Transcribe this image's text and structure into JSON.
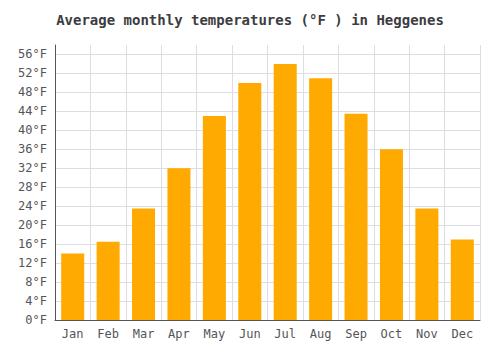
{
  "chart_data": {
    "type": "bar",
    "title": "Average monthly temperatures (°F ) in Heggenes",
    "categories": [
      "Jan",
      "Feb",
      "Mar",
      "Apr",
      "May",
      "Jun",
      "Jul",
      "Aug",
      "Sep",
      "Oct",
      "Nov",
      "Dec"
    ],
    "values": [
      14,
      16.5,
      23.5,
      32,
      43,
      50,
      54,
      51,
      43.5,
      36,
      23.5,
      17
    ],
    "color": "#FFAA00",
    "ylim": [
      0,
      58
    ],
    "yticks": [
      {
        "value": 0,
        "label": "0°F"
      },
      {
        "value": 4,
        "label": "4°F"
      },
      {
        "value": 8,
        "label": "8°F"
      },
      {
        "value": 12,
        "label": "12°F"
      },
      {
        "value": 16,
        "label": "16°F"
      },
      {
        "value": 20,
        "label": "20°F"
      },
      {
        "value": 24,
        "label": "24°F"
      },
      {
        "value": 28,
        "label": "28°F"
      },
      {
        "value": 32,
        "label": "32°F"
      },
      {
        "value": 36,
        "label": "36°F"
      },
      {
        "value": 40,
        "label": "40°F"
      },
      {
        "value": 44,
        "label": "44°F"
      },
      {
        "value": 48,
        "label": "48°F"
      },
      {
        "value": 52,
        "label": "52°F"
      },
      {
        "value": 56,
        "label": "56°F"
      }
    ],
    "grid": true
  }
}
